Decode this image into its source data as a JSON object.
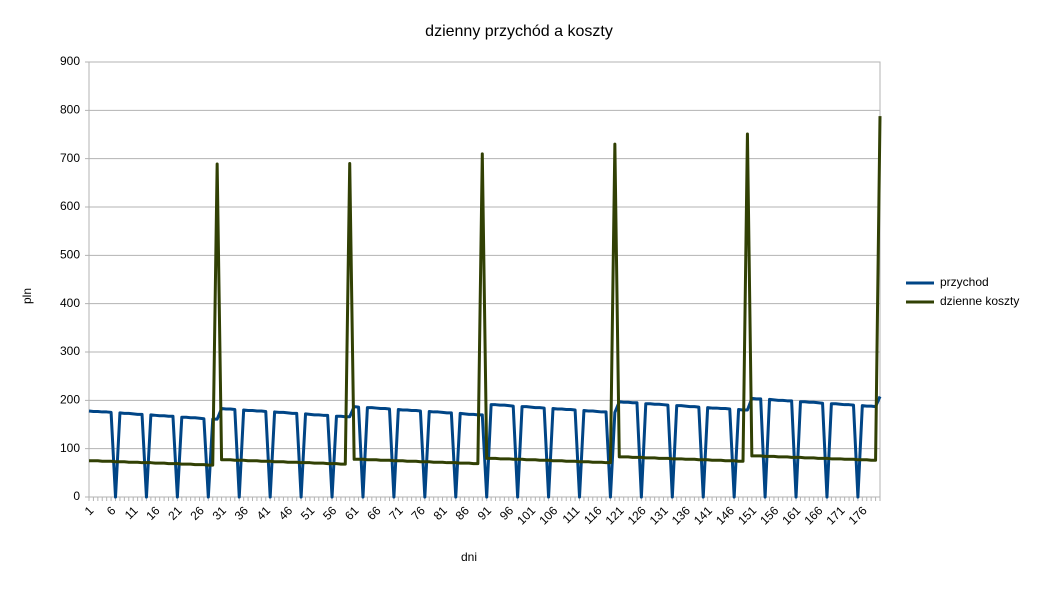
{
  "chart_data": {
    "type": "line",
    "title": "dzienny przychód a koszty",
    "xlabel": "dni",
    "ylabel": "pln",
    "categories": [
      1,
      null,
      null,
      null,
      null,
      6,
      null,
      null,
      null,
      null,
      11,
      null,
      null,
      null,
      null,
      16,
      null,
      null,
      null,
      null,
      21,
      null,
      null,
      null,
      null,
      26,
      null,
      null,
      null,
      null,
      31,
      null,
      null,
      null,
      null,
      36,
      null,
      null,
      null,
      null,
      41,
      null,
      null,
      null,
      null,
      46,
      null,
      null,
      null,
      null,
      51,
      null,
      null,
      null,
      null,
      56,
      null,
      null,
      null,
      null,
      61,
      null,
      null,
      null,
      null,
      66,
      null,
      null,
      null,
      null,
      71,
      null,
      null,
      null,
      null,
      76,
      null,
      null,
      null,
      null,
      81,
      null,
      null,
      null,
      null,
      86,
      null,
      null,
      null,
      null,
      91,
      null,
      null,
      null,
      null,
      96,
      null,
      null,
      null,
      null,
      101,
      null,
      null,
      null,
      null,
      106,
      null,
      null,
      null,
      null,
      111,
      null,
      null,
      null,
      null,
      116,
      null,
      null,
      null,
      null,
      121,
      null,
      null,
      null,
      null,
      126,
      null,
      null,
      null,
      null,
      131,
      null,
      null,
      null,
      null,
      136,
      null,
      null,
      null,
      null,
      141,
      null,
      null,
      null,
      null,
      146,
      null,
      null,
      null,
      null,
      151,
      null,
      null,
      null,
      null,
      156,
      null,
      null,
      null,
      null,
      161,
      null,
      null,
      null,
      null,
      166,
      null,
      null,
      null,
      null,
      171,
      null,
      null,
      null,
      null,
      176,
      null,
      null,
      null,
      null
    ],
    "series": [
      {
        "name": "przychod",
        "color": "#004586",
        "values": [
          178,
          177,
          177,
          176,
          176,
          175,
          0,
          174,
          173,
          173,
          172,
          171,
          171,
          0,
          170,
          169,
          168,
          168,
          167,
          167,
          0,
          165,
          165,
          164,
          164,
          163,
          162,
          0,
          161,
          161,
          183,
          182,
          182,
          181,
          0,
          180,
          179,
          179,
          178,
          178,
          177,
          0,
          176,
          175,
          175,
          174,
          173,
          173,
          0,
          172,
          171,
          170,
          170,
          169,
          169,
          0,
          167,
          167,
          166,
          166,
          187,
          186,
          0,
          185,
          185,
          184,
          183,
          183,
          182,
          0,
          181,
          180,
          180,
          179,
          179,
          178,
          0,
          177,
          176,
          176,
          175,
          174,
          174,
          0,
          173,
          172,
          171,
          171,
          170,
          170,
          0,
          191,
          191,
          190,
          190,
          189,
          188,
          0,
          187,
          187,
          186,
          185,
          185,
          184,
          0,
          183,
          182,
          182,
          181,
          181,
          180,
          0,
          179,
          178,
          178,
          177,
          176,
          176,
          0,
          175,
          197,
          196,
          196,
          195,
          195,
          0,
          193,
          193,
          192,
          192,
          191,
          190,
          0,
          189,
          189,
          188,
          187,
          187,
          186,
          0,
          185,
          184,
          184,
          183,
          183,
          182,
          0,
          181,
          180,
          180,
          204,
          203,
          203,
          0,
          202,
          201,
          200,
          200,
          199,
          199,
          0,
          197,
          197,
          196,
          196,
          195,
          194,
          0,
          193,
          193,
          192,
          191,
          191,
          190,
          0,
          189,
          188,
          188,
          187,
          208
        ]
      },
      {
        "name": "dzienne koszty",
        "color": "#314004",
        "values": [
          75,
          75,
          75,
          74,
          74,
          74,
          73,
          73,
          73,
          72,
          72,
          72,
          71,
          71,
          71,
          70,
          70,
          70,
          69,
          69,
          69,
          68,
          68,
          68,
          67,
          67,
          67,
          66,
          66,
          689,
          77,
          77,
          77,
          76,
          76,
          76,
          75,
          75,
          75,
          74,
          74,
          74,
          73,
          73,
          73,
          72,
          72,
          72,
          71,
          71,
          71,
          70,
          70,
          70,
          69,
          69,
          69,
          68,
          68,
          690,
          78,
          78,
          78,
          77,
          77,
          77,
          76,
          76,
          76,
          75,
          75,
          75,
          74,
          74,
          74,
          73,
          73,
          73,
          72,
          72,
          72,
          71,
          71,
          71,
          70,
          70,
          70,
          69,
          69,
          710,
          80,
          80,
          80,
          79,
          79,
          79,
          78,
          78,
          78,
          77,
          77,
          77,
          76,
          76,
          76,
          75,
          75,
          75,
          74,
          74,
          74,
          73,
          73,
          73,
          72,
          72,
          72,
          71,
          71,
          730,
          83,
          83,
          83,
          82,
          82,
          82,
          81,
          81,
          81,
          80,
          80,
          80,
          79,
          79,
          79,
          78,
          78,
          78,
          77,
          77,
          77,
          76,
          76,
          76,
          75,
          75,
          75,
          74,
          74,
          751,
          85,
          85,
          85,
          84,
          84,
          84,
          83,
          83,
          83,
          82,
          82,
          82,
          81,
          81,
          81,
          80,
          80,
          80,
          79,
          79,
          79,
          78,
          78,
          78,
          77,
          77,
          77,
          76,
          76,
          788
        ]
      }
    ],
    "ylim": [
      0,
      900
    ],
    "yticks": [
      0,
      100,
      200,
      300,
      400,
      500,
      600,
      700,
      800,
      900
    ],
    "grid": true,
    "legend": "right"
  }
}
